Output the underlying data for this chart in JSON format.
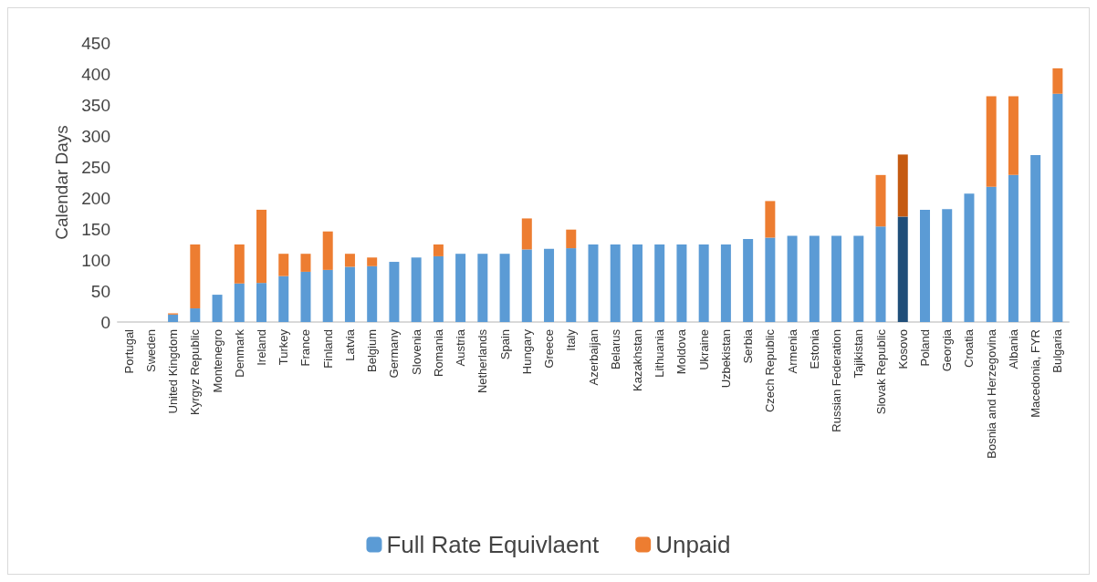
{
  "chart_data": {
    "type": "bar",
    "stacked": true,
    "ylabel": "Calendar Days",
    "categories": [
      "Portugal",
      "Sweden",
      "United Kingdom",
      "Kyrgyz Republic",
      "Montenegro",
      "Denmark",
      "Ireland",
      "Turkey",
      "France",
      "Finland",
      "Latvia",
      "Belgium",
      "Germany",
      "Slovenia",
      "Romania",
      "Austria",
      "Netherlands",
      "Spain",
      "Hungary",
      "Greece",
      "Italy",
      "Azerbaijan",
      "Belarus",
      "Kazakhstan",
      "Lithuania",
      "Moldova",
      "Ukraine",
      "Uzbekistan",
      "Serbia",
      "Czech Republic",
      "Armenia",
      "Estonia",
      "Russian Federation",
      "Tajikistan",
      "Slovak Republic",
      "Kosovo",
      "Poland",
      "Georgia",
      "Croatia",
      "Bosnia and Herzegovina",
      "Albania",
      "Macedonia, FYR",
      "Bulgaria"
    ],
    "series": [
      {
        "name": "Full Rate Equivlaent",
        "color": "#5b9bd5",
        "values": [
          0,
          0,
          12,
          22,
          44,
          62,
          63,
          74,
          81,
          84,
          89,
          90,
          97,
          104,
          106,
          110,
          110,
          110,
          117,
          118,
          119,
          125,
          125,
          125,
          125,
          125,
          125,
          125,
          134,
          136,
          139,
          139,
          139,
          139,
          154,
          170,
          181,
          182,
          207,
          218,
          237,
          269,
          368
        ],
        "colors": [
          "#5b9bd5",
          "#5b9bd5",
          "#5b9bd5",
          "#5b9bd5",
          "#5b9bd5",
          "#5b9bd5",
          "#5b9bd5",
          "#5b9bd5",
          "#5b9bd5",
          "#5b9bd5",
          "#5b9bd5",
          "#5b9bd5",
          "#5b9bd5",
          "#5b9bd5",
          "#5b9bd5",
          "#5b9bd5",
          "#5b9bd5",
          "#5b9bd5",
          "#5b9bd5",
          "#5b9bd5",
          "#5b9bd5",
          "#5b9bd5",
          "#5b9bd5",
          "#5b9bd5",
          "#5b9bd5",
          "#5b9bd5",
          "#5b9bd5",
          "#5b9bd5",
          "#5b9bd5",
          "#5b9bd5",
          "#5b9bd5",
          "#5b9bd5",
          "#5b9bd5",
          "#5b9bd5",
          "#5b9bd5",
          "#1f4e79",
          "#5b9bd5",
          "#5b9bd5",
          "#5b9bd5",
          "#5b9bd5",
          "#5b9bd5",
          "#5b9bd5",
          "#5b9bd5"
        ]
      },
      {
        "name": "Unpaid",
        "color": "#ed7d31",
        "values": [
          0,
          0,
          2,
          103,
          0,
          63,
          118,
          36,
          29,
          62,
          21,
          14,
          0,
          0,
          19,
          0,
          0,
          0,
          50,
          0,
          30,
          0,
          0,
          0,
          0,
          0,
          0,
          0,
          0,
          59,
          0,
          0,
          0,
          0,
          83,
          100,
          0,
          0,
          0,
          146,
          127,
          0,
          41
        ],
        "colors": [
          "#ed7d31",
          "#ed7d31",
          "#ed7d31",
          "#ed7d31",
          "#ed7d31",
          "#ed7d31",
          "#ed7d31",
          "#ed7d31",
          "#ed7d31",
          "#ed7d31",
          "#ed7d31",
          "#ed7d31",
          "#ed7d31",
          "#ed7d31",
          "#ed7d31",
          "#ed7d31",
          "#ed7d31",
          "#ed7d31",
          "#ed7d31",
          "#ed7d31",
          "#ed7d31",
          "#ed7d31",
          "#ed7d31",
          "#ed7d31",
          "#ed7d31",
          "#ed7d31",
          "#ed7d31",
          "#ed7d31",
          "#ed7d31",
          "#ed7d31",
          "#ed7d31",
          "#ed7d31",
          "#ed7d31",
          "#ed7d31",
          "#ed7d31",
          "#c55a11",
          "#ed7d31",
          "#ed7d31",
          "#ed7d31",
          "#ed7d31",
          "#ed7d31",
          "#ed7d31",
          "#ed7d31"
        ]
      }
    ],
    "ylim": [
      0,
      450
    ],
    "yticks": [
      0,
      50,
      100,
      150,
      200,
      250,
      300,
      350,
      400,
      450
    ],
    "grid": false,
    "legend": "bottom"
  }
}
